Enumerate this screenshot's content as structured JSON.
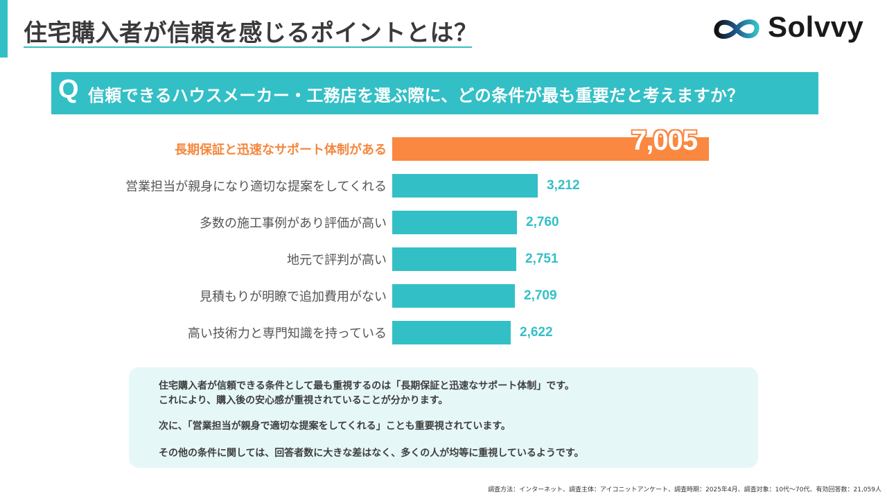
{
  "header": {
    "title": "住宅購入者が信頼を感じるポイントとは？",
    "brand": "Solvvy",
    "logo_icon": "infinity-logo-icon",
    "accent_color": "#33bfc6"
  },
  "question": {
    "mark": "Q",
    "text": "信頼できるハウスメーカー・工務店を選ぶ際に、どの条件が最も重要だと考えますか？"
  },
  "chart_data": {
    "type": "bar",
    "orientation": "horizontal",
    "categories": [
      "長期保証と迅速なサポート体制がある",
      "営業担当が親身になり適切な提案をしてくれる",
      "多数の施工事例があり評価が高い",
      "地元で評判が高い",
      "見積もりが明瞭で追加費用がない",
      "高い技術力と専門知識を持っている"
    ],
    "values": [
      7005,
      3212,
      2760,
      2751,
      2709,
      2622
    ],
    "value_labels": [
      "7,005",
      "3,212",
      "2,760",
      "2,751",
      "2,709",
      "2,622"
    ],
    "title": "",
    "xlabel": "",
    "ylabel": "",
    "xlim": [
      0,
      7005
    ],
    "grid": false,
    "highlight_index": 0,
    "colors": {
      "highlight": "#fb8841",
      "default": "#33bfc6"
    }
  },
  "summary": {
    "lines": [
      "住宅購入者が信頼できる条件として最も重視するのは「長期保証と迅速なサポート体制」です。",
      "これにより、購入後の安心感が重視されていることが分かります。",
      "次に、「営業担当が親身で適切な提案をしてくれる」ことも重要視されています。",
      "その他の条件に関しては、回答者数に大きな差はなく、多くの人が均等に重視しているようです。"
    ]
  },
  "footnote": "調査方法：インターネット、調査主体：アイコニットアンケート、調査時期：2025年4月、調査対象：10代〜70代、有効回答数：21,059人"
}
